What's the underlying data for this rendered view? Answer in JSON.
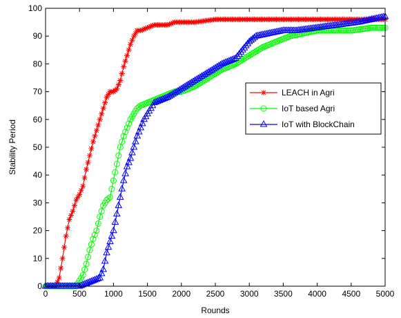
{
  "chart_data": {
    "type": "line",
    "title": "",
    "xlabel": "Rounds",
    "ylabel": "Stability Period",
    "xlim": [
      0,
      5000
    ],
    "ylim": [
      0,
      100
    ],
    "xticks": [
      0,
      500,
      1000,
      1500,
      2000,
      2500,
      3000,
      3500,
      4000,
      4500,
      5000
    ],
    "yticks": [
      0,
      10,
      20,
      30,
      40,
      50,
      60,
      70,
      80,
      90,
      100
    ],
    "grid": false,
    "legend_position": "right-center",
    "series": [
      {
        "name": "LEACH in Agri",
        "color": "#ff0000",
        "marker": "star",
        "points": [
          [
            0,
            0
          ],
          [
            100,
            0
          ],
          [
            150,
            0
          ],
          [
            200,
            3
          ],
          [
            250,
            10
          ],
          [
            300,
            18
          ],
          [
            350,
            24
          ],
          [
            400,
            27
          ],
          [
            450,
            31
          ],
          [
            500,
            33
          ],
          [
            550,
            36
          ],
          [
            600,
            42
          ],
          [
            650,
            47
          ],
          [
            700,
            52
          ],
          [
            750,
            56
          ],
          [
            800,
            60
          ],
          [
            850,
            64
          ],
          [
            900,
            68
          ],
          [
            950,
            70
          ],
          [
            1000,
            70
          ],
          [
            1050,
            71
          ],
          [
            1100,
            74
          ],
          [
            1150,
            79
          ],
          [
            1200,
            83
          ],
          [
            1250,
            87
          ],
          [
            1300,
            90
          ],
          [
            1350,
            92
          ],
          [
            1400,
            92
          ],
          [
            1500,
            93
          ],
          [
            1600,
            94
          ],
          [
            1700,
            94
          ],
          [
            1800,
            94
          ],
          [
            1900,
            95
          ],
          [
            2000,
            95
          ],
          [
            2200,
            95
          ],
          [
            2500,
            96
          ],
          [
            3000,
            96
          ],
          [
            3500,
            96
          ],
          [
            4000,
            96
          ],
          [
            4500,
            96
          ],
          [
            5000,
            96
          ]
        ]
      },
      {
        "name": "IoT based Agri",
        "color": "#00ff00",
        "marker": "circle",
        "points": [
          [
            0,
            0
          ],
          [
            200,
            0
          ],
          [
            300,
            0
          ],
          [
            400,
            0
          ],
          [
            450,
            0
          ],
          [
            500,
            2
          ],
          [
            550,
            4
          ],
          [
            600,
            8
          ],
          [
            650,
            13
          ],
          [
            700,
            17
          ],
          [
            750,
            20
          ],
          [
            800,
            25
          ],
          [
            850,
            29
          ],
          [
            900,
            31
          ],
          [
            950,
            32
          ],
          [
            1000,
            38
          ],
          [
            1050,
            44
          ],
          [
            1100,
            50
          ],
          [
            1150,
            54
          ],
          [
            1200,
            57
          ],
          [
            1250,
            60
          ],
          [
            1300,
            62
          ],
          [
            1350,
            64
          ],
          [
            1400,
            65
          ],
          [
            1500,
            66
          ],
          [
            1600,
            67
          ],
          [
            1700,
            68
          ],
          [
            1800,
            69
          ],
          [
            1900,
            70
          ],
          [
            2000,
            70
          ],
          [
            2200,
            72
          ],
          [
            2400,
            75
          ],
          [
            2600,
            78
          ],
          [
            2800,
            80
          ],
          [
            3000,
            83
          ],
          [
            3200,
            86
          ],
          [
            3400,
            88
          ],
          [
            3600,
            90
          ],
          [
            3800,
            91
          ],
          [
            4000,
            92
          ],
          [
            4200,
            92
          ],
          [
            4500,
            92
          ],
          [
            4800,
            93
          ],
          [
            5000,
            93
          ]
        ]
      },
      {
        "name": "IoT with BlockChain",
        "color": "#0000ff",
        "marker": "triangle",
        "points": [
          [
            0,
            0
          ],
          [
            200,
            0
          ],
          [
            400,
            0
          ],
          [
            500,
            0
          ],
          [
            600,
            1
          ],
          [
            700,
            2
          ],
          [
            800,
            3
          ],
          [
            850,
            6
          ],
          [
            900,
            12
          ],
          [
            950,
            16
          ],
          [
            1000,
            20
          ],
          [
            1050,
            26
          ],
          [
            1100,
            32
          ],
          [
            1150,
            38
          ],
          [
            1200,
            43
          ],
          [
            1250,
            46
          ],
          [
            1300,
            50
          ],
          [
            1350,
            54
          ],
          [
            1400,
            57
          ],
          [
            1450,
            60
          ],
          [
            1500,
            62
          ],
          [
            1550,
            64
          ],
          [
            1600,
            66
          ],
          [
            1700,
            67
          ],
          [
            1800,
            68
          ],
          [
            2000,
            71
          ],
          [
            2200,
            74
          ],
          [
            2400,
            77
          ],
          [
            2600,
            80
          ],
          [
            2800,
            82
          ],
          [
            2900,
            85
          ],
          [
            3000,
            88
          ],
          [
            3100,
            90
          ],
          [
            3300,
            91
          ],
          [
            3500,
            92
          ],
          [
            3700,
            92
          ],
          [
            4000,
            93
          ],
          [
            4300,
            94
          ],
          [
            4600,
            95
          ],
          [
            4800,
            96
          ],
          [
            5000,
            97
          ]
        ]
      }
    ]
  }
}
